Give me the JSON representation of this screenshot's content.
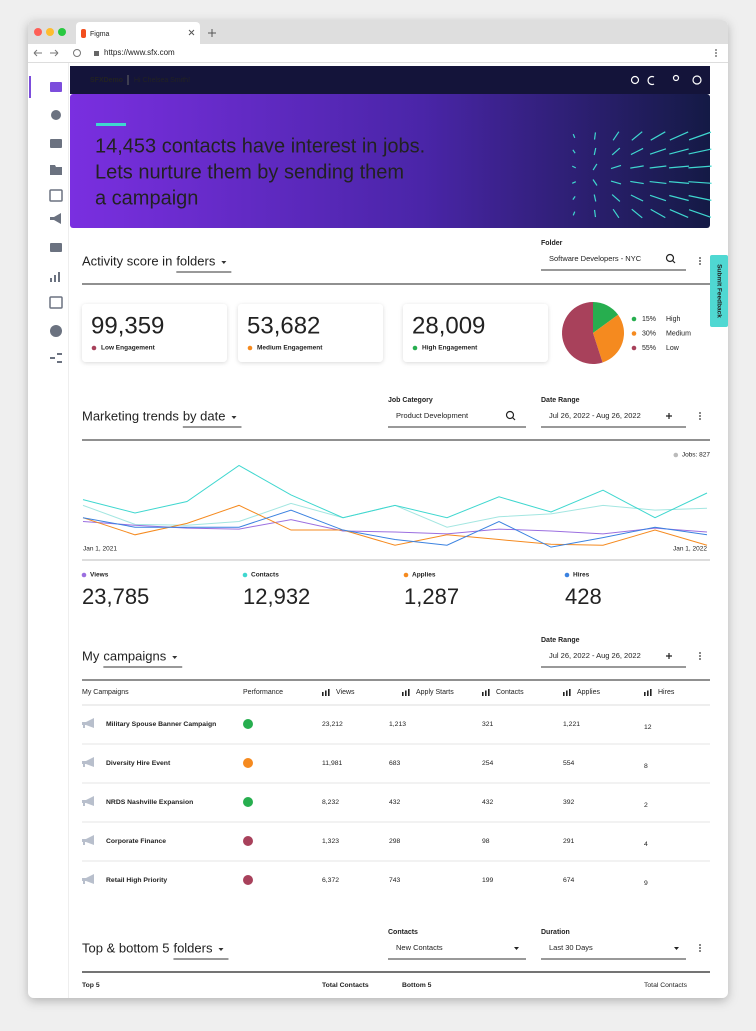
{
  "browser": {
    "tab_title": "Figma",
    "url": "https://www.sfx.com"
  },
  "header": {
    "brand": "SFXDemo",
    "greeting": "Hi Chelsea Smith!"
  },
  "hero": {
    "lines": [
      "14,453 contacts have interest in jobs.",
      "Lets nurture them by sending them",
      "a campaign"
    ]
  },
  "feedback": "Submit Feedback",
  "activity": {
    "title": "Activity score in",
    "dropdown": "folders",
    "filter": {
      "label": "Folder",
      "value": "Software Developers - NYC"
    },
    "stats": [
      {
        "value": "99,359",
        "label": "Low Engagement",
        "color": "#a8415b"
      },
      {
        "value": "53,682",
        "label": "Medium Engagement",
        "color": "#f58a1f"
      },
      {
        "value": "28,009",
        "label": "High Engagement",
        "color": "#27ae4f"
      }
    ],
    "pie": {
      "type": "pie",
      "categories": [
        "High",
        "Medium",
        "Low"
      ],
      "values": [
        15,
        30,
        55
      ],
      "value_labels": [
        "15%",
        "30%",
        "55%"
      ],
      "colors": [
        "#27ae4f",
        "#f58a1f",
        "#a8415b"
      ]
    }
  },
  "trends": {
    "title": "Marketing trends",
    "dropdown": "by date",
    "filters": [
      {
        "label": "Job Category",
        "value": "Product Development"
      },
      {
        "label": "Date Range",
        "value": "Jul 26, 2022 - Aug 26, 2022"
      }
    ],
    "chart": {
      "type": "line",
      "categories": [
        "Jan 1, 2021",
        null,
        null,
        null,
        null,
        null,
        null,
        null,
        null,
        null,
        null,
        null,
        "Jan 1, 2022"
      ],
      "ylim": [
        0,
        100
      ],
      "series": [
        {
          "name": "Jobs: 827",
          "color": "#a3e6e1",
          "values": [
            47,
            27,
            26,
            30,
            49,
            34,
            47,
            24,
            35,
            38,
            47,
            42,
            44
          ]
        },
        {
          "name": "Views",
          "color": "#9b6fe0",
          "total": "23,785",
          "values": [
            30,
            26,
            23,
            22,
            32,
            20,
            19,
            17,
            22,
            20,
            17,
            23,
            19
          ]
        },
        {
          "name": "Contacts",
          "color": "#3fd7cf",
          "total": "12,932",
          "values": [
            53,
            39,
            51,
            89,
            58,
            34,
            47,
            34,
            56,
            40,
            63,
            34,
            60
          ]
        },
        {
          "name": "Applies",
          "color": "#f58a1f",
          "total": "1,287",
          "values": [
            34,
            16,
            28,
            47,
            21,
            21,
            5,
            16,
            11,
            6,
            5,
            21,
            5
          ]
        },
        {
          "name": "Hires",
          "color": "#3b82e0",
          "total": "428",
          "values": [
            34,
            24,
            24,
            24,
            42,
            21,
            11,
            5,
            30,
            3,
            13,
            24,
            16
          ]
        }
      ]
    }
  },
  "campaigns": {
    "title": "My",
    "dropdown": "campaigns",
    "filter": {
      "label": "Date Range",
      "value": "Jul 26, 2022 - Aug 26, 2022"
    },
    "columns": [
      "My Campaigns",
      "Performance",
      "Views",
      "Apply Starts",
      "Contacts",
      "Applies",
      "Hires"
    ],
    "rows": [
      {
        "name": "Military Spouse Banner Campaign",
        "performance": "#27ae4f",
        "cells": [
          "23,212",
          "1,213",
          "321",
          "1,221",
          "12"
        ]
      },
      {
        "name": "Diversity Hire Event",
        "performance": "#f58a1f",
        "cells": [
          "11,981",
          "683",
          "254",
          "554",
          "8"
        ]
      },
      {
        "name": "NRDS Nashville Expansion",
        "performance": "#27ae4f",
        "cells": [
          "8,232",
          "432",
          "432",
          "392",
          "2"
        ]
      },
      {
        "name": "Corporate Finance",
        "performance": "#a8415b",
        "cells": [
          "1,323",
          "298",
          "98",
          "291",
          "4"
        ]
      },
      {
        "name": "Retail High Priority",
        "performance": "#a8415b",
        "cells": [
          "6,372",
          "743",
          "199",
          "674",
          "9"
        ]
      }
    ]
  },
  "folders": {
    "title": "Top & bottom 5",
    "dropdown": "folders",
    "filters": [
      {
        "label": "Contacts",
        "value": "New Contacts"
      },
      {
        "label": "Duration",
        "value": "Last 30 Days"
      }
    ],
    "columns": [
      "Top 5",
      "Total Contacts",
      "Bottom 5",
      "Total Contacts"
    ]
  }
}
